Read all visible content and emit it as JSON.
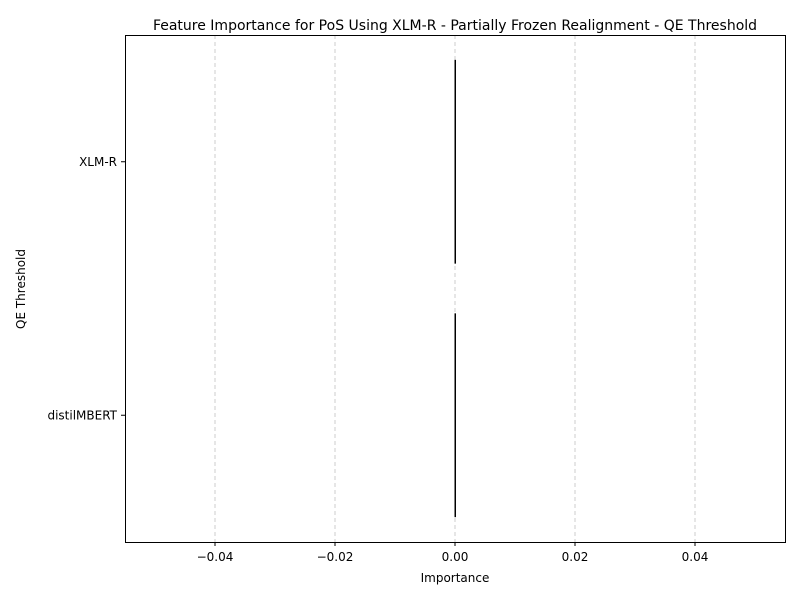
{
  "chart_data": {
    "type": "bar",
    "orientation": "horizontal",
    "title": "Feature Importance for PoS Using XLM-R - Partially Frozen Realignment - QE Threshold",
    "xlabel": "Importance",
    "ylabel": "QE Threshold",
    "categories": [
      "XLM-R",
      "distilMBERT"
    ],
    "values": [
      0.0,
      0.0
    ],
    "xlim": [
      -0.055,
      0.055
    ],
    "xticks": [
      -0.04,
      -0.02,
      0.0,
      0.02,
      0.04
    ],
    "xtick_labels": [
      "−0.04",
      "−0.02",
      "0.00",
      "0.02",
      "0.04"
    ],
    "grid": "x-dashed",
    "colors": {
      "bar_edge": "#000000",
      "grid": "#cccccc",
      "axis": "#000000"
    }
  }
}
